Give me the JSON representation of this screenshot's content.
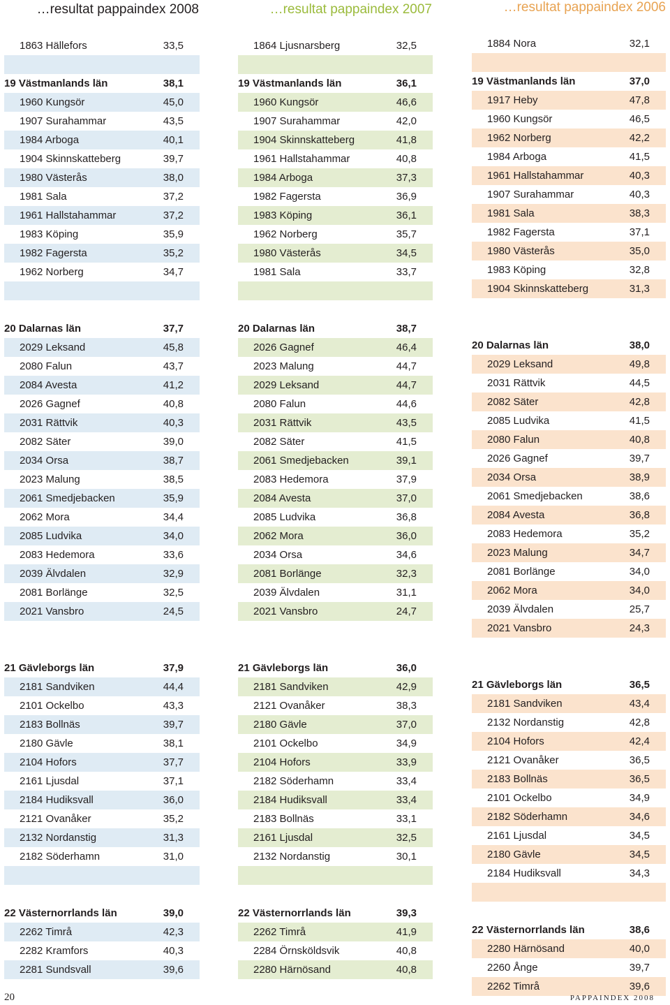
{
  "columns": [
    {
      "title": "…resultat pappaindex 2008",
      "sections": [
        {
          "header": null,
          "rows": [
            [
              "1863 Hällefors",
              "33,5"
            ]
          ]
        },
        {
          "header": [
            "19 Västmanlands län",
            "38,1"
          ],
          "rows": [
            [
              "1960 Kungsör",
              "45,0"
            ],
            [
              "1907 Surahammar",
              "43,5"
            ],
            [
              "1984 Arboga",
              "40,1"
            ],
            [
              "1904 Skinnskatteberg",
              "39,7"
            ],
            [
              "1980 Västerås",
              "38,0"
            ],
            [
              "1981 Sala",
              "37,2"
            ],
            [
              "1961 Hallstahammar",
              "37,2"
            ],
            [
              "1983 Köping",
              "35,9"
            ],
            [
              "1982 Fagersta",
              "35,2"
            ],
            [
              "1962 Norberg",
              "34,7"
            ]
          ]
        },
        {
          "header": [
            "20 Dalarnas län",
            "37,7"
          ],
          "rows": [
            [
              "2029 Leksand",
              "45,8"
            ],
            [
              "2080 Falun",
              "43,7"
            ],
            [
              "2084 Avesta",
              "41,2"
            ],
            [
              "2026 Gagnef",
              "40,8"
            ],
            [
              "2031 Rättvik",
              "40,3"
            ],
            [
              "2082 Säter",
              "39,0"
            ],
            [
              "2034 Orsa",
              "38,7"
            ],
            [
              "2023 Malung",
              "38,5"
            ],
            [
              "2061 Smedjebacken",
              "35,9"
            ],
            [
              "2062 Mora",
              "34,4"
            ],
            [
              "2085 Ludvika",
              "34,0"
            ],
            [
              "2083 Hedemora",
              "33,6"
            ],
            [
              "2039 Älvdalen",
              "32,9"
            ],
            [
              "2081 Borlänge",
              "32,5"
            ],
            [
              "2021 Vansbro",
              "24,5"
            ]
          ]
        },
        {
          "header": [
            "21 Gävleborgs län",
            "37,9"
          ],
          "rows": [
            [
              "2181 Sandviken",
              "44,4"
            ],
            [
              "2101 Ockelbo",
              "43,3"
            ],
            [
              "2183 Bollnäs",
              "39,7"
            ],
            [
              "2180 Gävle",
              "38,1"
            ],
            [
              "2104 Hofors",
              "37,7"
            ],
            [
              "2161 Ljusdal",
              "37,1"
            ],
            [
              "2184 Hudiksvall",
              "36,0"
            ],
            [
              "2121 Ovanåker",
              "35,2"
            ],
            [
              "2132 Nordanstig",
              "31,3"
            ],
            [
              "2182 Söderhamn",
              "31,0"
            ]
          ]
        },
        {
          "header": [
            "22 Västernorrlands län",
            "39,0"
          ],
          "rows": [
            [
              "2262 Timrå",
              "42,3"
            ],
            [
              "2282 Kramfors",
              "40,3"
            ],
            [
              "2281 Sundsvall",
              "39,6"
            ]
          ]
        }
      ]
    },
    {
      "title": "…resultat pappaindex 2007",
      "sections": [
        {
          "header": null,
          "rows": [
            [
              "1864 Ljusnarsberg",
              "32,5"
            ]
          ]
        },
        {
          "header": [
            "19 Västmanlands län",
            "36,1"
          ],
          "rows": [
            [
              "1960 Kungsör",
              "46,6"
            ],
            [
              "1907 Surahammar",
              "42,0"
            ],
            [
              "1904 Skinnskatteberg",
              "41,8"
            ],
            [
              "1961 Hallstahammar",
              "40,8"
            ],
            [
              "1984 Arboga",
              "37,3"
            ],
            [
              "1982 Fagersta",
              "36,9"
            ],
            [
              "1983 Köping",
              "36,1"
            ],
            [
              "1962 Norberg",
              "35,7"
            ],
            [
              "1980 Västerås",
              "34,5"
            ],
            [
              "1981 Sala",
              "33,7"
            ]
          ]
        },
        {
          "header": [
            "20 Dalarnas län",
            "38,7"
          ],
          "rows": [
            [
              "2026 Gagnef",
              "46,4"
            ],
            [
              "2023 Malung",
              "44,7"
            ],
            [
              "2029 Leksand",
              "44,7"
            ],
            [
              "2080 Falun",
              "44,6"
            ],
            [
              "2031 Rättvik",
              "43,5"
            ],
            [
              "2082 Säter",
              "41,5"
            ],
            [
              "2061 Smedjebacken",
              "39,1"
            ],
            [
              "2083 Hedemora",
              "37,9"
            ],
            [
              "2084 Avesta",
              "37,0"
            ],
            [
              "2085 Ludvika",
              "36,8"
            ],
            [
              "2062 Mora",
              "36,0"
            ],
            [
              "2034 Orsa",
              "34,6"
            ],
            [
              "2081 Borlänge",
              "32,3"
            ],
            [
              "2039 Älvdalen",
              "31,1"
            ],
            [
              "2021 Vansbro",
              "24,7"
            ]
          ]
        },
        {
          "header": [
            "21 Gävleborgs län",
            "36,0"
          ],
          "rows": [
            [
              "2181 Sandviken",
              "42,9"
            ],
            [
              "2121 Ovanåker",
              "38,3"
            ],
            [
              "2180 Gävle",
              "37,0"
            ],
            [
              "2101 Ockelbo",
              "34,9"
            ],
            [
              "2104 Hofors",
              "33,9"
            ],
            [
              "2182 Söderhamn",
              "33,4"
            ],
            [
              "2184 Hudiksvall",
              "33,4"
            ],
            [
              "2183 Bollnäs",
              "33,1"
            ],
            [
              "2161 Ljusdal",
              "32,5"
            ],
            [
              "2132 Nordanstig",
              "30,1"
            ]
          ]
        },
        {
          "header": [
            "22 Västernorrlands län",
            "39,3"
          ],
          "rows": [
            [
              "2262 Timrå",
              "41,9"
            ],
            [
              "2284 Örnsköldsvik",
              "40,8"
            ],
            [
              "2280 Härnösand",
              "40,8"
            ]
          ]
        }
      ]
    },
    {
      "title": "…resultat pappaindex 2006",
      "sections": [
        {
          "header": null,
          "rows": [
            [
              "1884 Nora",
              "32,1"
            ]
          ]
        },
        {
          "header": [
            "19 Västmanlands län",
            "37,0"
          ],
          "rows": [
            [
              "1917 Heby",
              "47,8"
            ],
            [
              "1960 Kungsör",
              "46,5"
            ],
            [
              "1962 Norberg",
              "42,2"
            ],
            [
              "1984 Arboga",
              "41,5"
            ],
            [
              "1961 Hallstahammar",
              "40,3"
            ],
            [
              "1907 Surahammar",
              "40,3"
            ],
            [
              "1981 Sala",
              "38,3"
            ],
            [
              "1982 Fagersta",
              "37,1"
            ],
            [
              "1980 Västerås",
              "35,0"
            ],
            [
              "1983 Köping",
              "32,8"
            ],
            [
              "1904 Skinnskatteberg",
              "31,3"
            ]
          ]
        },
        {
          "header": [
            "20 Dalarnas län",
            "38,0"
          ],
          "rows": [
            [
              "2029 Leksand",
              "49,8"
            ],
            [
              "2031 Rättvik",
              "44,5"
            ],
            [
              "2082 Säter",
              "42,8"
            ],
            [
              "2085 Ludvika",
              "41,5"
            ],
            [
              "2080 Falun",
              "40,8"
            ],
            [
              "2026 Gagnef",
              "39,7"
            ],
            [
              "2034 Orsa",
              "38,9"
            ],
            [
              "2061 Smedjebacken",
              "38,6"
            ],
            [
              "2084 Avesta",
              "36,8"
            ],
            [
              "2083 Hedemora",
              "35,2"
            ],
            [
              "2023 Malung",
              "34,7"
            ],
            [
              "2081 Borlänge",
              "34,0"
            ],
            [
              "2062 Mora",
              "34,0"
            ],
            [
              "2039 Älvdalen",
              "25,7"
            ],
            [
              "2021 Vansbro",
              "24,3"
            ]
          ]
        },
        {
          "header": [
            "21 Gävleborgs län",
            "36,5"
          ],
          "rows": [
            [
              "2181 Sandviken",
              "43,4"
            ],
            [
              "2132 Nordanstig",
              "42,8"
            ],
            [
              "2104 Hofors",
              "42,4"
            ],
            [
              "2121 Ovanåker",
              "36,5"
            ],
            [
              "2183 Bollnäs",
              "36,5"
            ],
            [
              "2101 Ockelbo",
              "34,9"
            ],
            [
              "2182 Söderhamn",
              "34,6"
            ],
            [
              "2161 Ljusdal",
              "34,5"
            ],
            [
              "2180 Gävle",
              "34,5"
            ],
            [
              "2184 Hudiksvall",
              "34,3"
            ]
          ]
        },
        {
          "header": [
            "22 Västernorrlands län",
            "38,6"
          ],
          "rows": [
            [
              "2280 Härnösand",
              "40,0"
            ],
            [
              "2260 Ånge",
              "39,7"
            ],
            [
              "2262 Timrå",
              "39,6"
            ]
          ]
        }
      ]
    }
  ],
  "footer": {
    "page_number": "20",
    "publication": "PAPPAINDEX 2008"
  },
  "colors": {
    "col_2008_shade": "#dfebf4",
    "col_2007_shade": "#e4edd1",
    "col_2006_shade": "#fbe3cd",
    "col_2007_title": "#9bbb3c",
    "col_2006_title": "#e8a352"
  }
}
